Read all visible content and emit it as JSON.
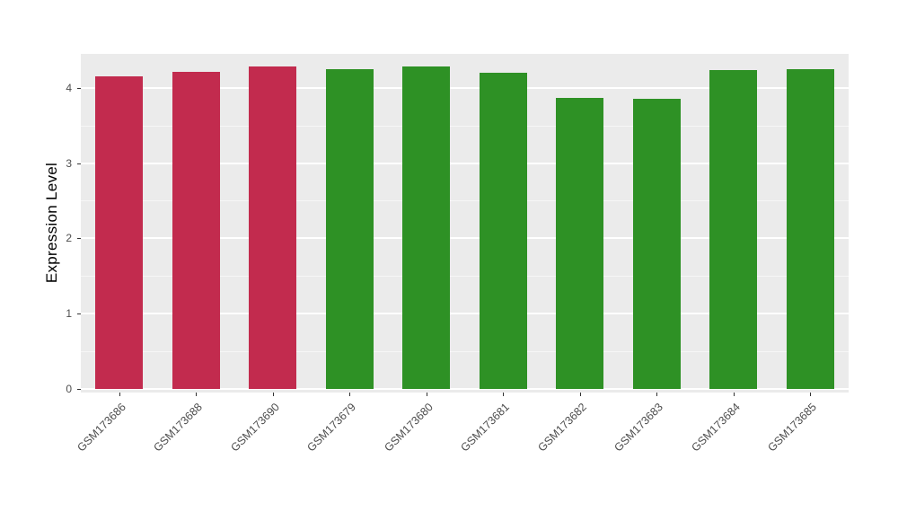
{
  "chart_data": {
    "type": "bar",
    "ylabel": "Expression Level",
    "xlabel": "",
    "ylim": [
      0,
      4.45
    ],
    "yticks": [
      0,
      1,
      2,
      3,
      4
    ],
    "yticks_minor": [
      0.5,
      1.5,
      2.5,
      3.5
    ],
    "grid": true,
    "legend": "none",
    "categories": [
      "GSM173686",
      "GSM173688",
      "GSM173690",
      "GSM173679",
      "GSM173680",
      "GSM173681",
      "GSM173682",
      "GSM173683",
      "GSM173684",
      "GSM173685"
    ],
    "values": [
      4.15,
      4.21,
      4.28,
      4.25,
      4.28,
      4.2,
      3.87,
      3.85,
      4.24,
      4.25
    ],
    "bar_colors": [
      "#C22B4E",
      "#C22B4E",
      "#C22B4E",
      "#2E9125",
      "#2E9125",
      "#2E9125",
      "#2E9125",
      "#2E9125",
      "#2E9125",
      "#2E9125"
    ],
    "group_colors": {
      "red_group": "#C22B4E",
      "green_group": "#2E9125"
    },
    "panel_background": "#EBEBEB",
    "grid_color": "#FFFFFF",
    "tick_label_color": "#4D4D4D",
    "axis_title_color": "#000000"
  }
}
